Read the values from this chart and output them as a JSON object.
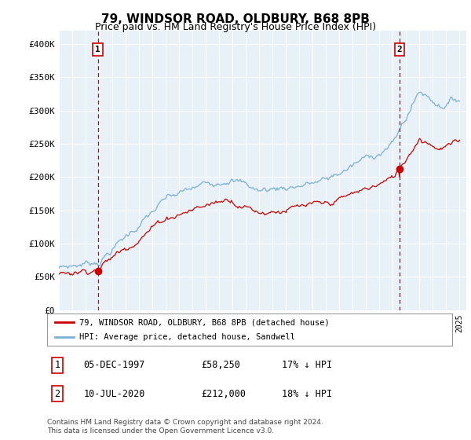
{
  "title": "79, WINDSOR ROAD, OLDBURY, B68 8PB",
  "subtitle": "Price paid vs. HM Land Registry's House Price Index (HPI)",
  "ylim": [
    0,
    420000
  ],
  "yticks": [
    0,
    50000,
    100000,
    150000,
    200000,
    250000,
    300000,
    350000,
    400000
  ],
  "ytick_labels": [
    "£0",
    "£50K",
    "£100K",
    "£150K",
    "£200K",
    "£250K",
    "£300K",
    "£350K",
    "£400K"
  ],
  "x_start_year": 1995,
  "x_end_year": 2025,
  "t1_year": 1997.917,
  "t2_year": 2020.5,
  "point1_value": 58250,
  "point2_value": 212000,
  "line_color_red": "#cc0000",
  "line_color_blue": "#7ab0d4",
  "dashed_line_color": "#cc0000",
  "background_color": "#ffffff",
  "plot_bg_color": "#e8f0f8",
  "grid_color": "#ffffff",
  "legend_label_red": "79, WINDSOR ROAD, OLDBURY, B68 8PB (detached house)",
  "legend_label_blue": "HPI: Average price, detached house, Sandwell",
  "table_row1": [
    "1",
    "05-DEC-1997",
    "£58,250",
    "17% ↓ HPI"
  ],
  "table_row2": [
    "2",
    "10-JUL-2020",
    "£212,000",
    "18% ↓ HPI"
  ],
  "footer": "Contains HM Land Registry data © Crown copyright and database right 2024.\nThis data is licensed under the Open Government Licence v3.0.",
  "title_fontsize": 11,
  "subtitle_fontsize": 9
}
